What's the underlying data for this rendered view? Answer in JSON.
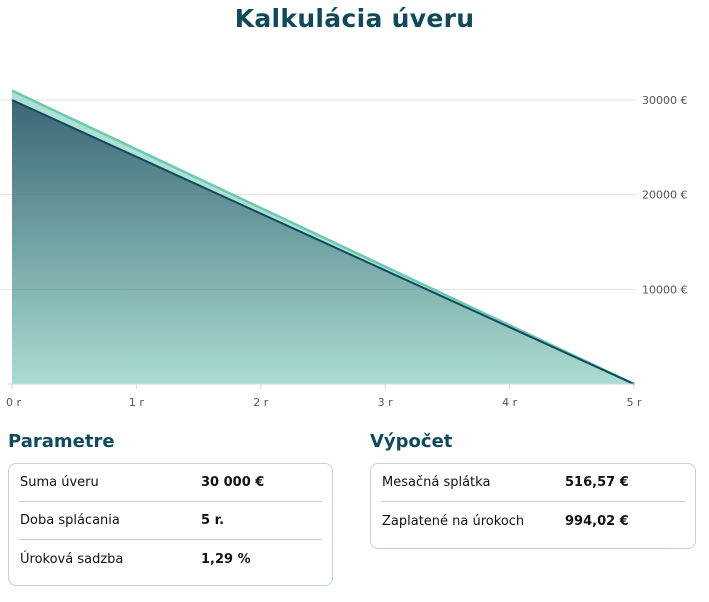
{
  "page": {
    "title": "Kalkulácia úveru"
  },
  "chart_data": {
    "type": "area",
    "series": [
      {
        "x": [
          0,
          5
        ],
        "values": [
          30994.02,
          0
        ],
        "color": "#6cc9b1"
      },
      {
        "x": [
          0,
          5
        ],
        "values": [
          30000,
          0
        ],
        "color": "#0e4a5c"
      }
    ],
    "x_tick_labels": [
      "0 r",
      "1 r",
      "2 r",
      "3 r",
      "4 r",
      "5 r"
    ],
    "x_ticks": [
      0,
      1,
      2,
      3,
      4,
      5
    ],
    "y_tick_labels": [
      "30000 €",
      "20000 €",
      "10000 €"
    ],
    "y_ticks": [
      30000,
      20000,
      10000
    ],
    "xlim": [
      0,
      5
    ],
    "ylim": [
      0,
      30000
    ],
    "grid": true,
    "title": "",
    "xlabel": "",
    "ylabel": ""
  },
  "parameters": {
    "heading": "Parametre",
    "rows": [
      {
        "label": "Suma úveru",
        "value": "30 000 €"
      },
      {
        "label": "Doba splácania",
        "value": "5 r."
      },
      {
        "label": "Úroková sadzba",
        "value": "1,29 %"
      }
    ]
  },
  "calculation": {
    "heading": "Výpočet",
    "rows": [
      {
        "label": "Mesačná splátka",
        "value": "516,57 €"
      },
      {
        "label": "Zaplatené na úrokoch",
        "value": "994,02 €"
      }
    ]
  },
  "colors": {
    "brand": "#0e4a5c",
    "accent": "#6cc9b1",
    "border": "#c7d0d3"
  }
}
